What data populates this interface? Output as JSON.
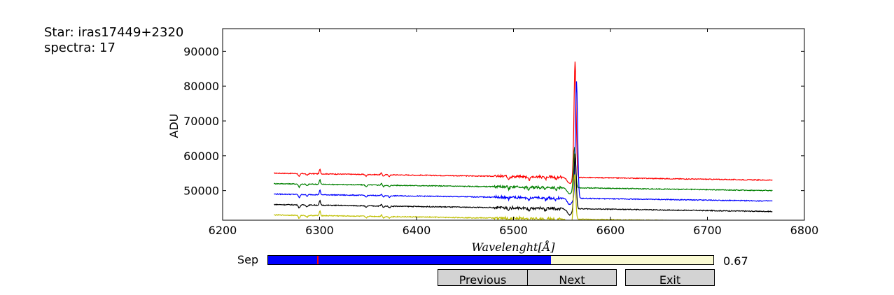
{
  "info": {
    "star_text": "Star: iras17449+2320",
    "spectra_text": "spectra: 17"
  },
  "chart_data": {
    "type": "line",
    "xlabel": "Wavelenght[Å]",
    "ylabel": "ADU",
    "xlim": [
      6200,
      6800
    ],
    "ylim": [
      41500,
      96500
    ],
    "xticks": [
      6200,
      6300,
      6400,
      6500,
      6600,
      6700,
      6800
    ],
    "yticks": [
      50000,
      60000,
      70000,
      80000,
      90000
    ],
    "grid": false,
    "x_range": [
      6253,
      6767
    ],
    "series": [
      {
        "color": "#ff0000",
        "continuum_start": 55000,
        "continuum_end": 53000,
        "peak": 88500,
        "peak_x": 6563.5
      },
      {
        "color": "#008000",
        "continuum_start": 52000,
        "continuum_end": 50000,
        "peak": 64000,
        "peak_x": 6563.0
      },
      {
        "color": "#0000ff",
        "continuum_start": 49000,
        "continuum_end": 47000,
        "peak": 82500,
        "peak_x": 6565.0
      },
      {
        "color": "#000000",
        "continuum_start": 46000,
        "continuum_end": 44000,
        "peak": 62000,
        "peak_x": 6563.5
      },
      {
        "color": "#bfbf00",
        "continuum_start": 43000,
        "continuum_end": 41000,
        "peak": 56000,
        "peak_x": 6563.0
      }
    ]
  },
  "slider": {
    "label": "Sep",
    "value": 0.67,
    "value_text": "0.67",
    "min": 0,
    "max": 1,
    "initial_marker": 0.11,
    "fill_fraction": 0.635,
    "fill_color": "#0000ff",
    "track_color": "#fafad2"
  },
  "buttons": {
    "previous": "Previous",
    "next": "Next",
    "exit": "Exit"
  }
}
